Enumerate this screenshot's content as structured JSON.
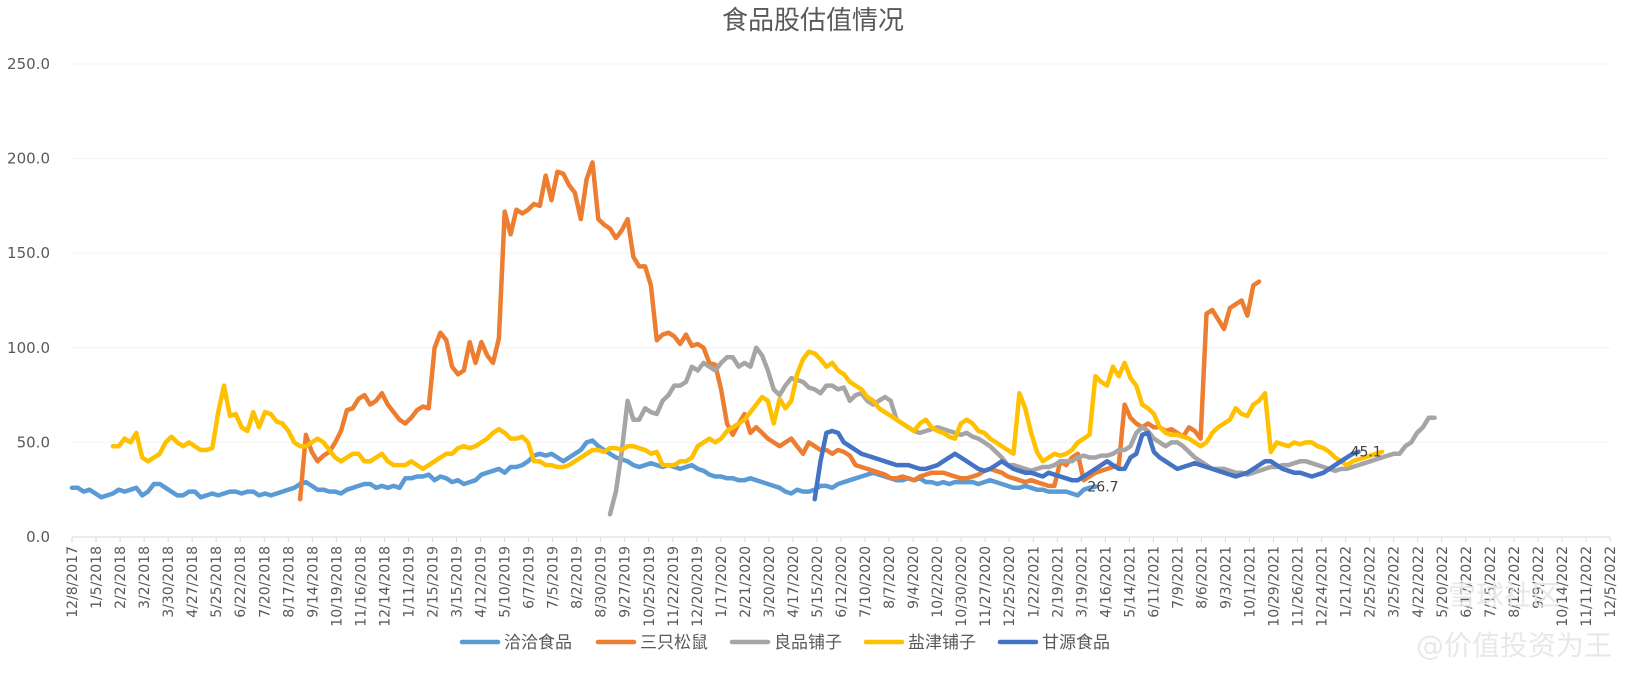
{
  "chart_data": {
    "type": "line",
    "title": "食品股估值情况",
    "ylim": [
      0,
      250
    ],
    "y_ticks": [
      "0.0",
      "50.0",
      "100.0",
      "150.0",
      "200.0",
      "250.0"
    ],
    "x_tick_labels": [
      "12/8/2017",
      "1/5/2018",
      "2/2/2018",
      "3/2/2018",
      "3/30/2018",
      "4/27/2018",
      "5/25/2018",
      "6/22/2018",
      "7/20/2018",
      "8/17/2018",
      "9/14/2018",
      "10/19/2018",
      "11/16/2018",
      "12/14/2018",
      "1/11/2019",
      "2/15/2019",
      "3/15/2019",
      "4/12/2019",
      "5/10/2019",
      "6/7/2019",
      "7/5/2019",
      "8/2/2019",
      "8/30/2019",
      "9/27/2019",
      "10/25/2019",
      "11/22/2019",
      "12/20/2019",
      "1/17/2020",
      "2/21/2020",
      "3/20/2020",
      "4/17/2020",
      "5/15/2020",
      "6/12/2020",
      "7/10/2020",
      "8/7/2020",
      "9/4/2020",
      "10/2/2020",
      "10/30/2020",
      "11/27/2020",
      "12/25/2020",
      "1/22/2021",
      "2/19/2021",
      "3/19/2021",
      "4/16/2021",
      "5/14/2021",
      "6/11/2021",
      "7/9/2021",
      "8/6/2021",
      "9/3/2021",
      "10/1/2021",
      "10/29/2021",
      "11/26/2021",
      "12/24/2021",
      "1/21/2022",
      "2/25/2022",
      "3/25/2022",
      "4/22/2022",
      "5/20/2022",
      "6/17/2022",
      "7/15/2022",
      "8/12/2022",
      "9/9/2022",
      "10/14/2022",
      "11/11/2022",
      "12/5/2022"
    ],
    "end_labels": [
      {
        "series": "洽洽食品",
        "text": "26.7"
      },
      {
        "series": "甘源食品",
        "text": "45.1"
      }
    ],
    "series": [
      {
        "name": "洽洽食品",
        "color": "#5B9BD5",
        "start_index": 0,
        "values": [
          26,
          26,
          24,
          25,
          23,
          21,
          22,
          23,
          25,
          24,
          25,
          26,
          22,
          24,
          28,
          28,
          26,
          24,
          22,
          22,
          24,
          24,
          21,
          22,
          23,
          22,
          23,
          24,
          24,
          23,
          24,
          24,
          22,
          23,
          22,
          23,
          24,
          25,
          26,
          28,
          29,
          27,
          25,
          25,
          24,
          24,
          23,
          25,
          26,
          27,
          28,
          28,
          26,
          27,
          26,
          27,
          26,
          31,
          31,
          32,
          32,
          33,
          30,
          32,
          31,
          29,
          30,
          28,
          29,
          30,
          33,
          34,
          35,
          36,
          34,
          37,
          37,
          38,
          40,
          43,
          44,
          43,
          44,
          42,
          40,
          42,
          44,
          46,
          50,
          51,
          48,
          46,
          44,
          42,
          41,
          40,
          38,
          37,
          38,
          39,
          38,
          37,
          38,
          37,
          36,
          37,
          38,
          36,
          35,
          33,
          32,
          32,
          31,
          31,
          30,
          30,
          31,
          30,
          29,
          28,
          27,
          26,
          24,
          23,
          25,
          24,
          24,
          25,
          27,
          27,
          26,
          28,
          29,
          30,
          31,
          32,
          33,
          34,
          33,
          32,
          31,
          30,
          30,
          31,
          30,
          31,
          29,
          29,
          28,
          29,
          28,
          29,
          29,
          29,
          29,
          28,
          29,
          30,
          29,
          28,
          27,
          26,
          26,
          27,
          26,
          25,
          25,
          24,
          24,
          24,
          24,
          23,
          22,
          25,
          26,
          26.7
        ]
      },
      {
        "name": "三只松鼠",
        "color": "#ED7D31",
        "start_index": 39,
        "values": [
          20,
          54,
          45,
          40,
          43,
          45,
          50,
          56,
          67,
          68,
          73,
          75,
          70,
          72,
          76,
          70,
          66,
          62,
          60,
          63,
          67,
          69,
          68,
          100,
          108,
          104,
          90,
          86,
          88,
          103,
          92,
          103,
          96,
          92,
          105,
          172,
          160,
          173,
          171,
          173,
          176,
          175,
          191,
          178,
          193,
          192,
          186,
          182,
          168,
          189,
          198,
          168,
          165,
          163,
          158,
          162,
          168,
          148,
          143,
          143,
          133,
          104,
          107,
          108,
          106,
          102,
          107,
          101,
          102,
          100,
          92,
          91,
          78,
          60,
          54,
          60,
          65,
          55,
          58,
          55,
          52,
          50,
          48,
          50,
          52,
          48,
          44,
          50,
          48,
          46,
          46,
          44,
          46,
          45,
          43,
          38,
          37,
          36,
          35,
          34,
          33,
          31,
          31,
          32,
          31,
          30,
          32,
          33,
          34,
          34,
          34,
          33,
          32,
          31,
          31,
          32,
          33,
          35,
          36,
          35,
          34,
          32,
          31,
          30,
          29,
          30,
          29,
          28,
          27,
          27,
          40,
          38,
          42,
          44,
          30,
          32,
          34,
          35,
          36,
          37,
          38,
          70,
          63,
          60,
          58,
          60,
          58,
          58,
          56,
          57,
          55,
          53,
          58,
          56,
          52,
          118,
          120,
          115,
          110,
          121,
          123,
          125,
          117,
          133,
          135
        ]
      },
      {
        "name": "良品铺子",
        "color": "#A5A5A5",
        "start_index": 92,
        "values": [
          12,
          24,
          45,
          72,
          62,
          62,
          68,
          66,
          65,
          72,
          75,
          80,
          80,
          82,
          90,
          88,
          92,
          90,
          88,
          92,
          95,
          95,
          90,
          92,
          90,
          100,
          96,
          88,
          78,
          75,
          80,
          84,
          83,
          82,
          79,
          78,
          76,
          80,
          80,
          78,
          79,
          72,
          75,
          76,
          72,
          70,
          72,
          74,
          72,
          62,
          60,
          58,
          56,
          55,
          56,
          57,
          58,
          57,
          56,
          55,
          54,
          55,
          53,
          52,
          50,
          48,
          45,
          42,
          38,
          38,
          37,
          36,
          35,
          36,
          37,
          37,
          38,
          40,
          40,
          40,
          42,
          43,
          42,
          42,
          43,
          43,
          44,
          46,
          46,
          48,
          55,
          58,
          56,
          52,
          50,
          48,
          50,
          50,
          48,
          45,
          42,
          40,
          38,
          36,
          36,
          36,
          35,
          34,
          34,
          33,
          34,
          35,
          36,
          37,
          37,
          38,
          38,
          39,
          40,
          40,
          39,
          38,
          37,
          36,
          35,
          36,
          36,
          37,
          38,
          39,
          40,
          41,
          42,
          43,
          44,
          44,
          48,
          50,
          55,
          58,
          63,
          63
        ]
      },
      {
        "name": "盐津铺子",
        "color": "#FFC000",
        "start_index": 7,
        "values": [
          48,
          48,
          52,
          50,
          55,
          42,
          40,
          42,
          44,
          50,
          53,
          50,
          48,
          50,
          48,
          46,
          46,
          47,
          66,
          80,
          64,
          65,
          58,
          56,
          66,
          58,
          66,
          65,
          61,
          60,
          56,
          50,
          48,
          48,
          50,
          52,
          50,
          46,
          42,
          40,
          42,
          44,
          44,
          40,
          40,
          42,
          44,
          40,
          38,
          38,
          38,
          40,
          38,
          36,
          38,
          40,
          42,
          44,
          44,
          47,
          48,
          47,
          48,
          50,
          52,
          55,
          57,
          55,
          52,
          52,
          53,
          50,
          40,
          40,
          38,
          38,
          37,
          37,
          38,
          40,
          42,
          44,
          46,
          46,
          45,
          47,
          47,
          46,
          48,
          48,
          47,
          46,
          44,
          45,
          38,
          38,
          38,
          40,
          40,
          42,
          48,
          50,
          52,
          50,
          52,
          56,
          58,
          60,
          62,
          66,
          70,
          74,
          72,
          60,
          73,
          68,
          72,
          86,
          94,
          98,
          97,
          94,
          90,
          92,
          88,
          86,
          82,
          80,
          78,
          74,
          72,
          68,
          66,
          64,
          62,
          60,
          58,
          56,
          60,
          62,
          58,
          56,
          55,
          53,
          52,
          60,
          62,
          60,
          56,
          55,
          52,
          50,
          48,
          46,
          44,
          76,
          68,
          55,
          45,
          40,
          42,
          44,
          43,
          44,
          46,
          50,
          52,
          54,
          85,
          82,
          80,
          90,
          85,
          92,
          84,
          80,
          70,
          68,
          65,
          58,
          55,
          54,
          54,
          53,
          52,
          50,
          48,
          50,
          55,
          58,
          60,
          62,
          68,
          65,
          64,
          70,
          72,
          76,
          45,
          50,
          49,
          48,
          50,
          49,
          50,
          50,
          48,
          47,
          45,
          42,
          40,
          38,
          40,
          41,
          42,
          43,
          44,
          45
        ]
      },
      {
        "name": "甘源食品",
        "color": "#4472C4",
        "start_index": 127,
        "values": [
          20,
          40,
          55,
          56,
          55,
          50,
          48,
          46,
          44,
          43,
          42,
          41,
          40,
          39,
          38,
          38,
          38,
          37,
          36,
          36,
          37,
          38,
          40,
          42,
          44,
          42,
          40,
          38,
          36,
          35,
          36,
          38,
          40,
          38,
          36,
          35,
          34,
          34,
          33,
          32,
          34,
          33,
          32,
          31,
          30,
          30,
          32,
          34,
          36,
          38,
          40,
          38,
          36,
          36,
          42,
          44,
          54,
          55,
          45,
          42,
          40,
          38,
          36,
          37,
          38,
          39,
          38,
          37,
          36,
          35,
          34,
          33,
          32,
          33,
          34,
          36,
          38,
          40,
          40,
          38,
          36,
          35,
          34,
          34,
          33,
          32,
          33,
          34,
          36,
          38,
          40,
          42,
          44,
          45.1
        ]
      }
    ]
  },
  "watermark": {
    "line1": "雪球社区",
    "line2": "@价值投资为王"
  }
}
